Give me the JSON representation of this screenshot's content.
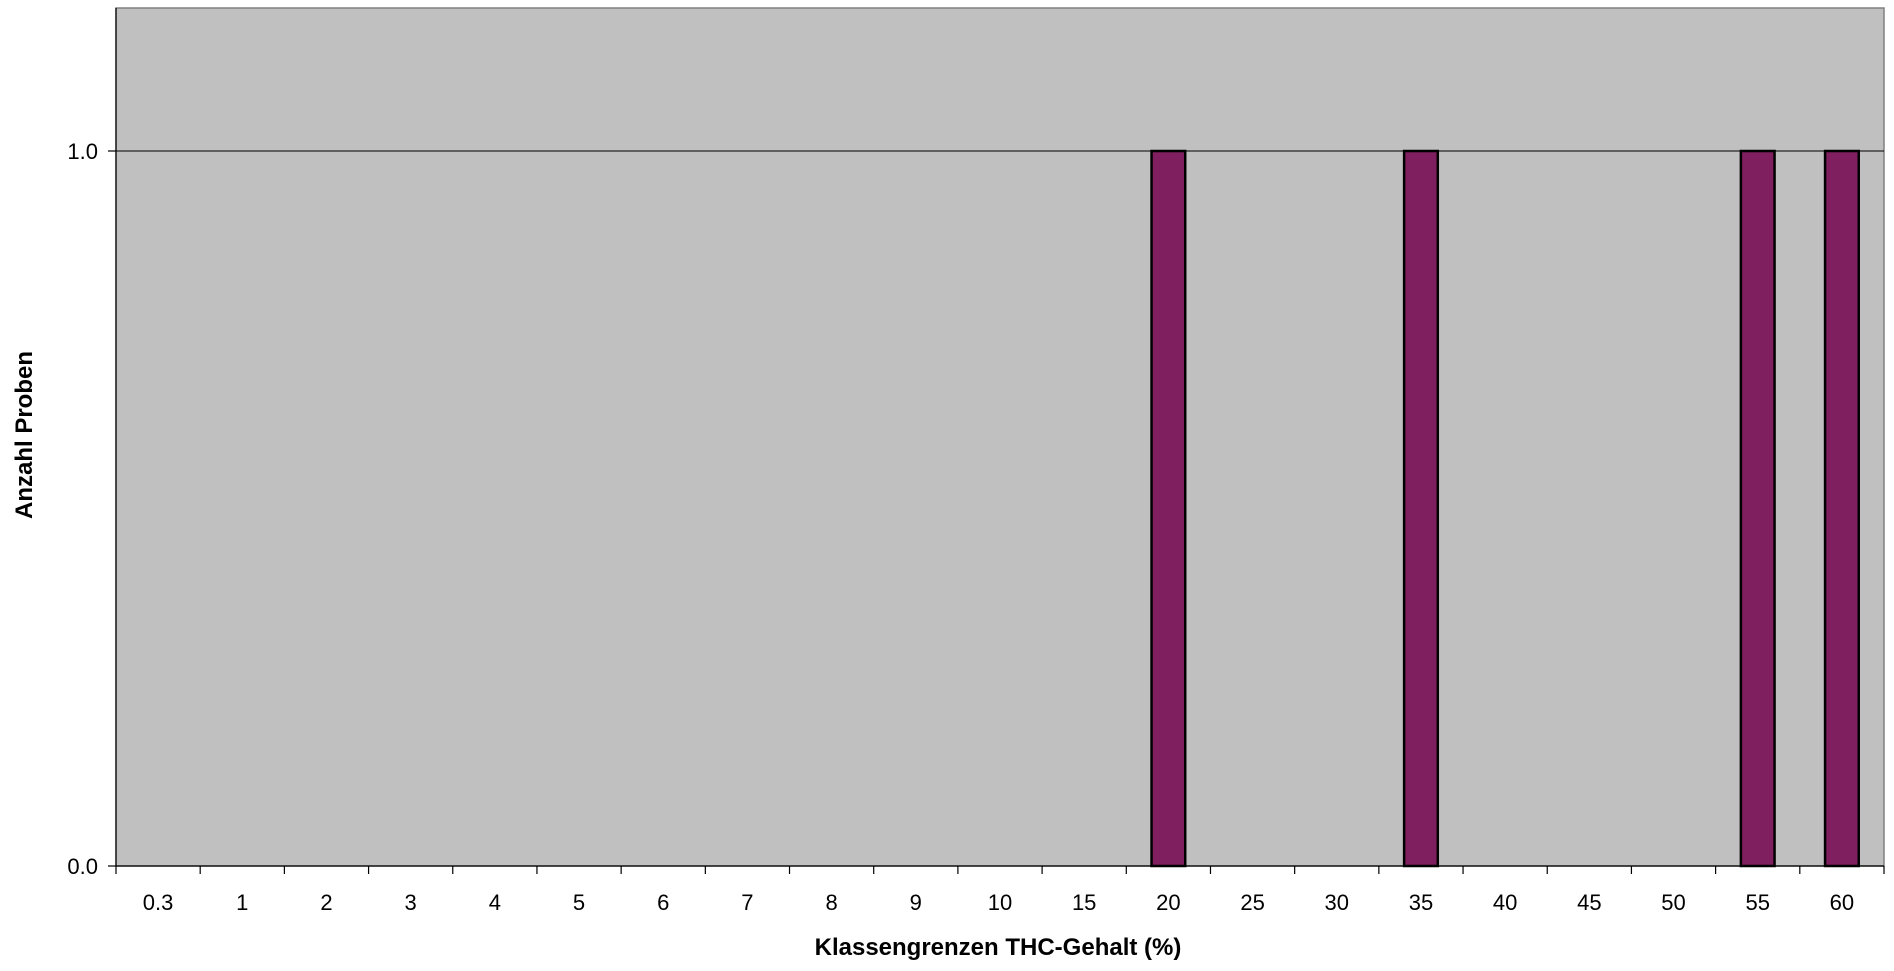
{
  "chart_data": {
    "type": "bar",
    "title": "",
    "xlabel": "Klassengrenzen THC-Gehalt (%)",
    "ylabel": "Anzahl Proben",
    "categories": [
      "0.3",
      "1",
      "2",
      "3",
      "4",
      "5",
      "6",
      "7",
      "8",
      "9",
      "10",
      "15",
      "20",
      "25",
      "30",
      "35",
      "40",
      "45",
      "50",
      "55",
      "60"
    ],
    "values": [
      0,
      0,
      0,
      0,
      0,
      0,
      0,
      0,
      0,
      0,
      0,
      0,
      1,
      0,
      0,
      1,
      0,
      0,
      0,
      1,
      1
    ],
    "ylim": [
      0,
      1.2
    ],
    "yticks": [
      0.0,
      1.0
    ],
    "ytick_labels": [
      "0.0",
      "1.0"
    ],
    "grid": true,
    "legend": "none",
    "colors": {
      "bar_fill": "#7f1f5f",
      "bar_stroke": "#000000",
      "plot_background": "#c0c0c0",
      "gridline": "#000000"
    }
  }
}
